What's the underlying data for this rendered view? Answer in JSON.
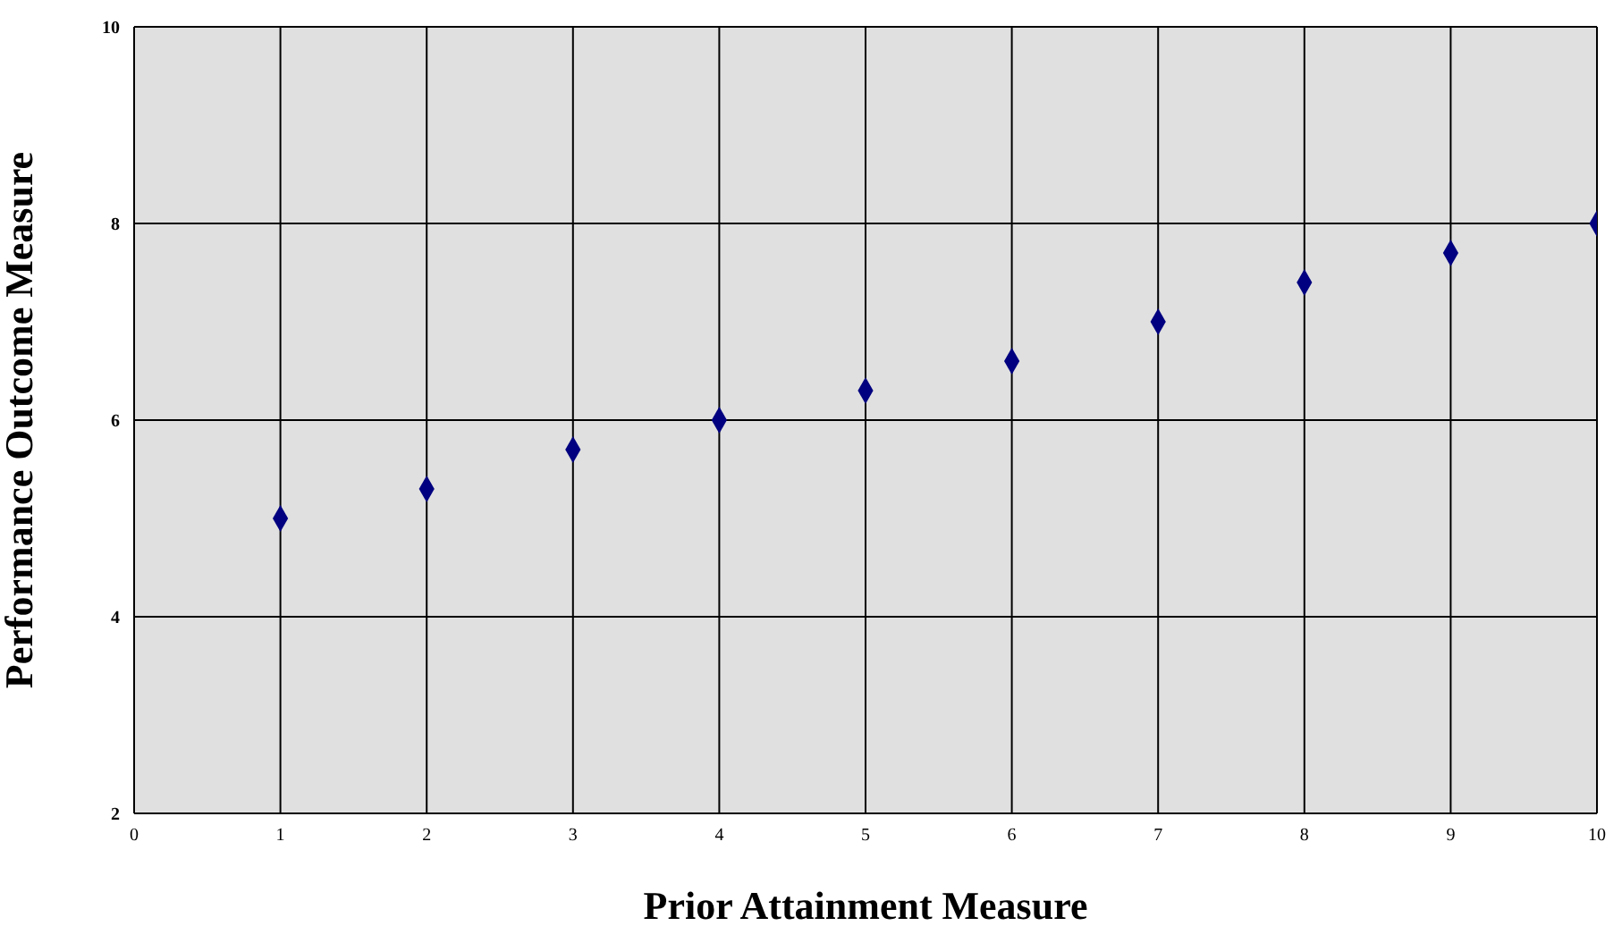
{
  "chart_data": {
    "type": "scatter",
    "xlabel": "Prior Attainment Measure",
    "ylabel": "Performance Outcome Measure",
    "x": [
      1,
      2,
      3,
      4,
      5,
      6,
      7,
      8,
      9,
      10
    ],
    "series": [
      {
        "color": "#000080",
        "values": [
          5,
          5.3,
          5.7,
          6,
          6.3,
          6.6,
          7,
          7.4,
          7.7,
          8
        ]
      }
    ],
    "xlim": [
      0,
      10
    ],
    "xticks": [
      0,
      1,
      2,
      3,
      4,
      5,
      6,
      7,
      8,
      9,
      10
    ],
    "ylim": [
      2,
      10
    ],
    "yticks": [
      2,
      4,
      6,
      8,
      10
    ],
    "grid": true,
    "marker": "diamond",
    "legend": false
  }
}
